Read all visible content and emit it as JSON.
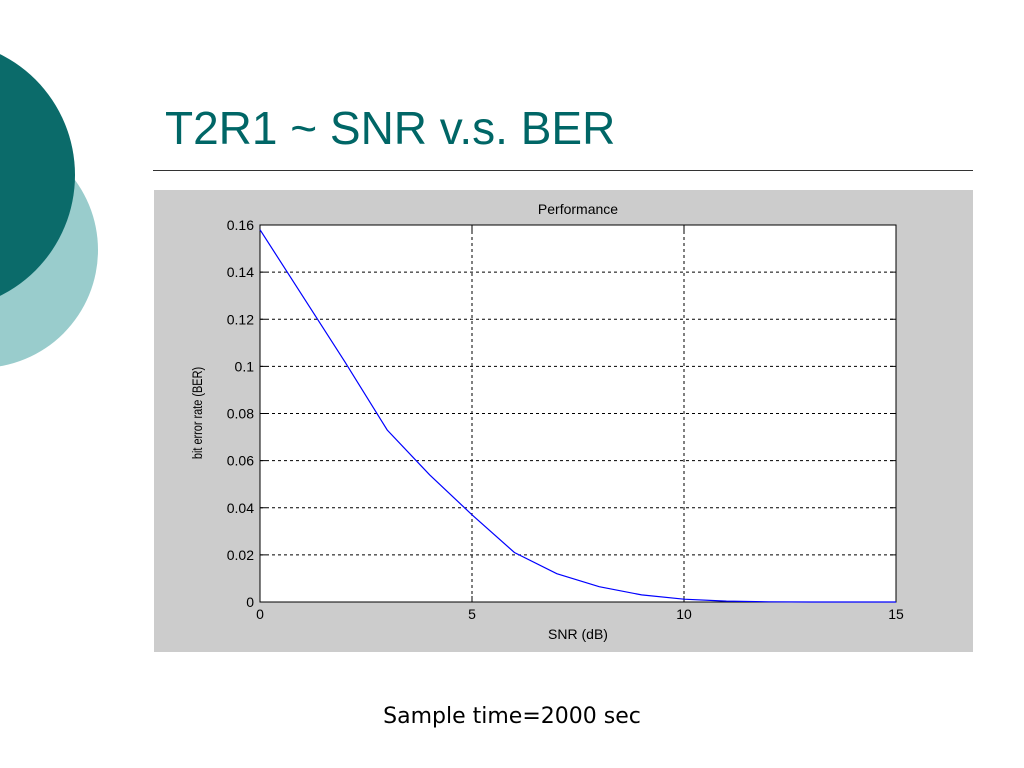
{
  "slide": {
    "title": "T2R1 ~ SNR v.s. BER",
    "caption": "Sample time=2000 sec",
    "colors": {
      "title": "#006666",
      "deco_dark": "#0b6b6a",
      "deco_light": "#99cccc",
      "figure_bg": "#cccccc",
      "line": "#0000ff"
    }
  },
  "chart_data": {
    "type": "line",
    "title": "Performance",
    "xlabel": "SNR (dB)",
    "ylabel": "bit error rate (BER)",
    "xlim": [
      0,
      15
    ],
    "ylim": [
      0,
      0.16
    ],
    "xticks": [
      0,
      5,
      10,
      15
    ],
    "yticks": [
      0,
      0.02,
      0.04,
      0.06,
      0.08,
      0.1,
      0.12,
      0.14,
      0.16
    ],
    "ytick_labels": [
      "0",
      "0.02",
      "0.04",
      "0.06",
      "0.08",
      "0.1",
      "0.12",
      "0.14",
      "0.16"
    ],
    "xtick_labels": [
      "0",
      "5",
      "10",
      "15"
    ],
    "grid": true,
    "series": [
      {
        "color": "#0000ff",
        "x": [
          0,
          1,
          2,
          3,
          4,
          5,
          6,
          7,
          8,
          9,
          10,
          11,
          12,
          13,
          14,
          15
        ],
        "y": [
          0.158,
          0.13,
          0.102,
          0.073,
          0.054,
          0.037,
          0.021,
          0.012,
          0.0065,
          0.003,
          0.0012,
          0.0004,
          0.0001,
          0,
          0,
          0
        ]
      }
    ]
  }
}
